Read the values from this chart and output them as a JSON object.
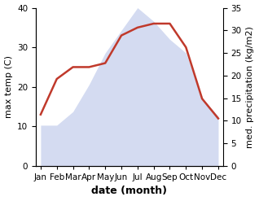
{
  "months": [
    "Jan",
    "Feb",
    "Mar",
    "Apr",
    "May",
    "Jun",
    "Jul",
    "Aug",
    "Sep",
    "Oct",
    "Nov",
    "Dec"
  ],
  "month_x": [
    0,
    1,
    2,
    3,
    4,
    5,
    6,
    7,
    8,
    9,
    10,
    11
  ],
  "temperature": [
    13,
    22,
    25,
    25,
    26,
    33,
    35,
    36,
    36,
    30,
    17,
    12
  ],
  "precipitation": [
    9,
    9,
    12,
    18,
    25,
    30,
    35,
    32,
    28,
    25,
    15,
    11
  ],
  "temp_ylim": [
    0,
    40
  ],
  "precip_ylim": [
    0,
    35
  ],
  "temp_yticks": [
    0,
    10,
    20,
    30,
    40
  ],
  "precip_yticks": [
    0,
    5,
    10,
    15,
    20,
    25,
    30,
    35
  ],
  "temp_color": "#c0392b",
  "precip_color": "#b8c4e8",
  "precip_fill_alpha": 0.6,
  "temp_linewidth": 1.8,
  "xlabel": "date (month)",
  "ylabel_left": "max temp (C)",
  "ylabel_right": "med. precipitation (kg/m2)",
  "background_color": "#ffffff",
  "label_fontsize": 8,
  "tick_fontsize": 7.5,
  "xlabel_fontsize": 9
}
